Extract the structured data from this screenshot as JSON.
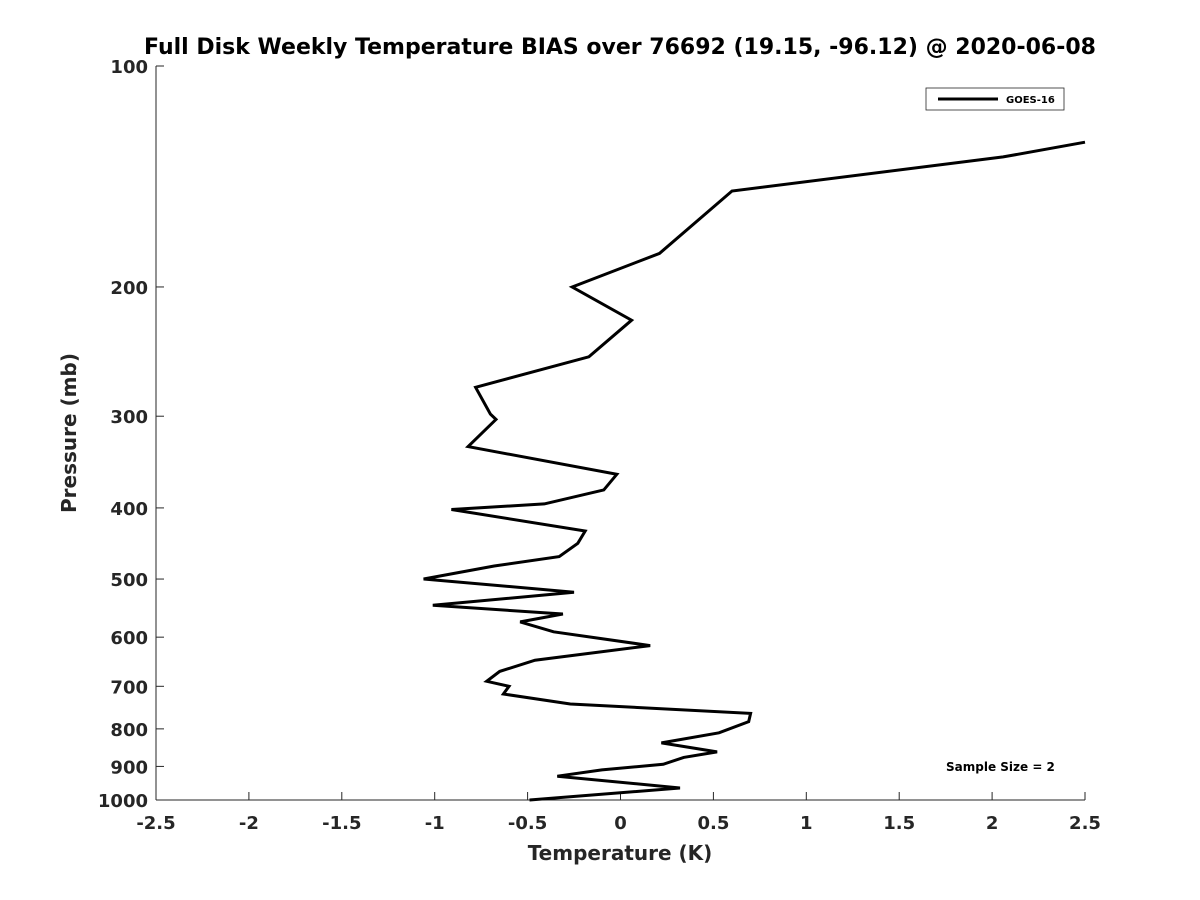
{
  "chart_data": {
    "type": "line",
    "title": "Full Disk Weekly Temperature BIAS over 76692 (19.15, -96.12) @ 2020-06-08",
    "xlabel": "Temperature (K)",
    "ylabel": "Pressure (mb)",
    "xlim": [
      -2.5,
      2.5
    ],
    "ylim": [
      1000,
      100
    ],
    "y_scale": "log",
    "y_reversed": true,
    "grid": false,
    "x_ticks": [
      -2.5,
      -2,
      -1.5,
      -1,
      -0.5,
      0,
      0.5,
      1,
      1.5,
      2,
      2.5
    ],
    "x_tick_labels": [
      "-2.5",
      "-2",
      "-1.5",
      "-1",
      "-0.5",
      "0",
      "0.5",
      "1",
      "1.5",
      "2",
      "2.5"
    ],
    "y_ticks": [
      100,
      200,
      300,
      400,
      500,
      600,
      700,
      800,
      900,
      1000
    ],
    "y_tick_labels": [
      "100",
      "200",
      "300",
      "400",
      "500",
      "600",
      "700",
      "800",
      "900",
      "1000"
    ],
    "legend_position": "top-right",
    "annotation": "Sample Size = 2",
    "series": [
      {
        "name": "GOES-16",
        "color": "#000000",
        "points": [
          {
            "x": 2.5,
            "y": 127
          },
          {
            "x": 2.06,
            "y": 133
          },
          {
            "x": 0.6,
            "y": 148
          },
          {
            "x": 0.21,
            "y": 180
          },
          {
            "x": -0.26,
            "y": 200
          },
          {
            "x": 0.06,
            "y": 222
          },
          {
            "x": -0.17,
            "y": 249
          },
          {
            "x": -0.78,
            "y": 274
          },
          {
            "x": -0.7,
            "y": 298
          },
          {
            "x": -0.67,
            "y": 303
          },
          {
            "x": -0.82,
            "y": 330
          },
          {
            "x": -0.02,
            "y": 360
          },
          {
            "x": -0.09,
            "y": 378
          },
          {
            "x": -0.41,
            "y": 395
          },
          {
            "x": -0.91,
            "y": 402
          },
          {
            "x": -0.19,
            "y": 430
          },
          {
            "x": -0.23,
            "y": 447
          },
          {
            "x": -0.33,
            "y": 466
          },
          {
            "x": -0.68,
            "y": 480
          },
          {
            "x": -1.06,
            "y": 500
          },
          {
            "x": -0.25,
            "y": 521
          },
          {
            "x": -1.01,
            "y": 543
          },
          {
            "x": -0.31,
            "y": 558
          },
          {
            "x": -0.54,
            "y": 572
          },
          {
            "x": -0.36,
            "y": 590
          },
          {
            "x": 0.16,
            "y": 616
          },
          {
            "x": -0.46,
            "y": 645
          },
          {
            "x": -0.65,
            "y": 668
          },
          {
            "x": -0.72,
            "y": 689
          },
          {
            "x": -0.6,
            "y": 700
          },
          {
            "x": -0.63,
            "y": 717
          },
          {
            "x": -0.27,
            "y": 740
          },
          {
            "x": 0.7,
            "y": 762
          },
          {
            "x": 0.69,
            "y": 782
          },
          {
            "x": 0.53,
            "y": 810
          },
          {
            "x": 0.22,
            "y": 836
          },
          {
            "x": 0.52,
            "y": 860
          },
          {
            "x": 0.34,
            "y": 875
          },
          {
            "x": 0.23,
            "y": 894
          },
          {
            "x": -0.1,
            "y": 910
          },
          {
            "x": -0.34,
            "y": 928
          },
          {
            "x": 0.32,
            "y": 963
          },
          {
            "x": -0.49,
            "y": 1000
          }
        ]
      }
    ]
  }
}
